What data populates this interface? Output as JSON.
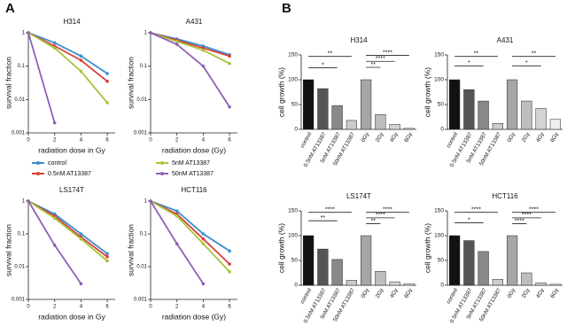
{
  "panel_labels": [
    "A",
    "B"
  ],
  "chart_data": [
    {
      "type": "line",
      "title": "H314",
      "x_label": "radiation dose in Gy",
      "y_label": "survival fraction",
      "log_y": true,
      "x": [
        0,
        2,
        4,
        6
      ],
      "xlim": [
        0,
        6.6
      ],
      "xticks": [
        0,
        2,
        4,
        6
      ],
      "ylim": [
        0.001,
        1
      ],
      "yticks": [
        0.001,
        0.01,
        0.1,
        1
      ],
      "series": [
        {
          "name": "control",
          "color": "#3a8fd0",
          "values": [
            1,
            0.5,
            0.2,
            0.06
          ]
        },
        {
          "name": "0.5nM AT13387",
          "color": "#d9413a",
          "values": [
            1,
            0.4,
            0.15,
            0.035
          ]
        },
        {
          "name": "5nM AT13387",
          "color": "#a8c43a",
          "values": [
            1,
            0.35,
            0.07,
            0.008
          ]
        },
        {
          "name": "50nM AT13387",
          "color": "#8f5fb8",
          "values": [
            1,
            0.002,
            null,
            null
          ]
        }
      ]
    },
    {
      "type": "line",
      "title": "A431",
      "x_label": "radiation dose (Gy)",
      "y_label": "survival fraction",
      "log_y": true,
      "x": [
        0,
        2,
        4,
        6
      ],
      "xlim": [
        0,
        6.6
      ],
      "xticks": [
        0,
        2,
        4,
        6
      ],
      "ylim": [
        0.001,
        1
      ],
      "yticks": [
        0.001,
        0.01,
        0.1,
        1
      ],
      "series": [
        {
          "name": "control",
          "color": "#3a8fd0",
          "values": [
            1,
            0.65,
            0.4,
            0.22
          ]
        },
        {
          "name": "0.5nM AT13387",
          "color": "#d9413a",
          "values": [
            1,
            0.6,
            0.35,
            0.2
          ]
        },
        {
          "name": "5nM AT13387",
          "color": "#a8c43a",
          "values": [
            1,
            0.55,
            0.3,
            0.12
          ]
        },
        {
          "name": "50nM AT13387",
          "color": "#8f5fb8",
          "values": [
            1,
            0.45,
            0.1,
            0.006
          ]
        }
      ]
    },
    {
      "type": "line",
      "title": "LS174T",
      "x_label": "radiation dose in Gy",
      "y_label": "survival fraction",
      "log_y": true,
      "x": [
        0,
        2,
        4,
        6
      ],
      "xlim": [
        0,
        6.6
      ],
      "xticks": [
        0,
        2,
        4,
        6
      ],
      "ylim": [
        0.001,
        1
      ],
      "yticks": [
        0.001,
        0.01,
        0.1,
        1
      ],
      "series": [
        {
          "name": "control",
          "color": "#3a8fd0",
          "values": [
            1,
            0.4,
            0.1,
            0.025
          ]
        },
        {
          "name": "0.5nM AT13387",
          "color": "#d9413a",
          "values": [
            1,
            0.35,
            0.08,
            0.02
          ]
        },
        {
          "name": "5nM AT13387",
          "color": "#a8c43a",
          "values": [
            1,
            0.3,
            0.07,
            0.015
          ]
        },
        {
          "name": "50nM AT13387",
          "color": "#8f5fb8",
          "values": [
            1,
            0.045,
            0.003,
            null
          ]
        }
      ]
    },
    {
      "type": "line",
      "title": "HCT116",
      "x_label": "radiation dose (Gy)",
      "y_label": "survival fraction",
      "log_y": true,
      "x": [
        0,
        2,
        4,
        6
      ],
      "xlim": [
        0,
        6.6
      ],
      "xticks": [
        0,
        2,
        4,
        6
      ],
      "ylim": [
        0.001,
        1
      ],
      "yticks": [
        0.001,
        0.01,
        0.1,
        1
      ],
      "series": [
        {
          "name": "control",
          "color": "#3a8fd0",
          "values": [
            1,
            0.5,
            0.1,
            0.03
          ]
        },
        {
          "name": "0.5nM AT13387",
          "color": "#d9413a",
          "values": [
            1,
            0.4,
            0.07,
            0.012
          ]
        },
        {
          "name": "5nM AT13387",
          "color": "#a8c43a",
          "values": [
            1,
            0.35,
            0.05,
            0.007
          ]
        },
        {
          "name": "50nM AT13387",
          "color": "#8f5fb8",
          "values": [
            1,
            0.05,
            0.003,
            null
          ]
        }
      ]
    },
    {
      "type": "bar",
      "title": "H314",
      "y_label": "cell growth (%)",
      "categories": [
        "control",
        "0.5nM AT13387",
        "5nM AT13387",
        "50nM AT13387",
        "0Gy",
        "2Gy",
        "4Gy",
        "6Gy"
      ],
      "values": [
        100,
        82,
        48,
        18,
        100,
        30,
        10,
        2
      ],
      "colors": [
        "#111111",
        "#555555",
        "#888888",
        "#cccccc",
        "#a6a6a6",
        "#bdbdbd",
        "#d4d4d4",
        "#eeeeee"
      ],
      "ylim": [
        0,
        150
      ],
      "yticks": [
        0,
        50,
        100,
        150
      ],
      "annotations": [
        "**",
        "*",
        "****",
        "****",
        "**"
      ]
    },
    {
      "type": "bar",
      "title": "A431",
      "y_label": "cell growth (%)",
      "categories": [
        "control",
        "0.5nM AT13387",
        "5nM AT13387",
        "50nM AT13387",
        "0Gy",
        "2Gy",
        "4Gy",
        "6Gy"
      ],
      "values": [
        100,
        80,
        57,
        12,
        100,
        57,
        42,
        20
      ],
      "colors": [
        "#111111",
        "#555555",
        "#888888",
        "#cccccc",
        "#a6a6a6",
        "#bdbdbd",
        "#d4d4d4",
        "#eeeeee"
      ],
      "ylim": [
        0,
        150
      ],
      "yticks": [
        0,
        50,
        100,
        150
      ],
      "annotations": [
        "**",
        "*",
        "**",
        "*"
      ]
    },
    {
      "type": "bar",
      "title": "LS174T",
      "y_label": "cell growth (%)",
      "categories": [
        "control",
        "0.5nM AT13387",
        "5nM AT13387",
        "50nM AT13387",
        "0Gy",
        "2Gy",
        "4Gy",
        "6Gy"
      ],
      "values": [
        100,
        73,
        52,
        10,
        100,
        28,
        7,
        3
      ],
      "colors": [
        "#111111",
        "#555555",
        "#888888",
        "#cccccc",
        "#a6a6a6",
        "#bdbdbd",
        "#d4d4d4",
        "#eeeeee"
      ],
      "ylim": [
        0,
        150
      ],
      "yticks": [
        0,
        50,
        100,
        150
      ],
      "annotations": [
        "****",
        "**",
        "****",
        "****",
        "**"
      ]
    },
    {
      "type": "bar",
      "title": "HCT116",
      "y_label": "cell growth (%)",
      "categories": [
        "control",
        "0.5nM AT13387",
        "5nM AT13387",
        "50nM AT13387",
        "0Gy",
        "2Gy",
        "4Gy",
        "6Gy"
      ],
      "values": [
        100,
        90,
        68,
        12,
        100,
        25,
        5,
        2
      ],
      "colors": [
        "#111111",
        "#555555",
        "#888888",
        "#cccccc",
        "#a6a6a6",
        "#bdbdbd",
        "#d4d4d4",
        "#eeeeee"
      ],
      "ylim": [
        0,
        150
      ],
      "yticks": [
        0,
        50,
        100,
        150
      ],
      "annotations": [
        "****",
        "*",
        "****",
        "****",
        "****"
      ]
    }
  ]
}
